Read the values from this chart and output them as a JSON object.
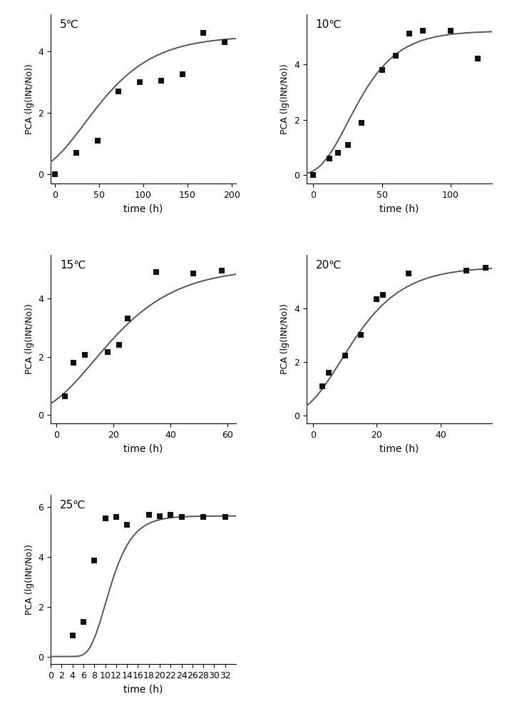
{
  "panels": [
    {
      "temp": "5℃",
      "scatter_x": [
        0,
        24,
        48,
        72,
        96,
        120,
        144,
        168,
        192
      ],
      "scatter_y": [
        0.0,
        0.7,
        1.1,
        2.7,
        3.0,
        3.05,
        3.25,
        4.6,
        4.3
      ],
      "xlim": [
        -5,
        205
      ],
      "ylim": [
        -0.3,
        5.2
      ],
      "xticks": [
        0,
        50,
        100,
        150,
        200
      ],
      "yticks": [
        0,
        2,
        4
      ],
      "gompertz": {
        "A": 4.5,
        "mu": 0.038,
        "lambda": -10
      },
      "curve_xmax": 205
    },
    {
      "temp": "10℃",
      "scatter_x": [
        0,
        12,
        18,
        25,
        35,
        50,
        60,
        70,
        80,
        100,
        120
      ],
      "scatter_y": [
        0.0,
        0.6,
        0.8,
        1.1,
        1.9,
        3.8,
        4.3,
        5.1,
        5.2,
        5.2,
        4.2
      ],
      "xlim": [
        -5,
        130
      ],
      "ylim": [
        -0.3,
        5.8
      ],
      "xticks": [
        0,
        50,
        100
      ],
      "yticks": [
        0,
        2,
        4
      ],
      "gompertz": {
        "A": 5.2,
        "mu": 0.095,
        "lambda": 5
      },
      "curve_xmax": 130
    },
    {
      "temp": "15℃",
      "scatter_x": [
        3,
        6,
        10,
        18,
        22,
        25,
        35,
        48,
        58
      ],
      "scatter_y": [
        0.65,
        1.8,
        2.05,
        2.15,
        2.4,
        3.3,
        4.9,
        4.85,
        4.95
      ],
      "xlim": [
        -2,
        63
      ],
      "ylim": [
        -0.3,
        5.5
      ],
      "xticks": [
        0,
        20,
        40,
        60
      ],
      "yticks": [
        0,
        2,
        4
      ],
      "gompertz": {
        "A": 5.05,
        "mu": 0.115,
        "lambda": -3
      },
      "curve_xmax": 63
    },
    {
      "temp": "20℃",
      "scatter_x": [
        3,
        5,
        10,
        15,
        20,
        22,
        30,
        48,
        54
      ],
      "scatter_y": [
        1.1,
        1.6,
        2.25,
        3.0,
        4.35,
        4.5,
        5.3,
        5.4,
        5.5
      ],
      "xlim": [
        -2,
        56
      ],
      "ylim": [
        -0.3,
        6.0
      ],
      "xticks": [
        0,
        20,
        40
      ],
      "yticks": [
        0,
        2,
        4
      ],
      "gompertz": {
        "A": 5.55,
        "mu": 0.19,
        "lambda": -2
      },
      "curve_xmax": 56
    },
    {
      "temp": "25℃",
      "scatter_x": [
        4,
        6,
        8,
        10,
        12,
        14,
        18,
        20,
        22,
        24,
        28,
        32
      ],
      "scatter_y": [
        0.85,
        1.4,
        3.85,
        5.55,
        5.6,
        5.3,
        5.7,
        5.65,
        5.7,
        5.6,
        5.6,
        5.6
      ],
      "xlim": [
        0,
        34
      ],
      "ylim": [
        -0.3,
        6.5
      ],
      "xticks": [
        0,
        2,
        4,
        6,
        8,
        10,
        12,
        14,
        16,
        18,
        20,
        22,
        24,
        26,
        28,
        30,
        32
      ],
      "yticks": [
        0,
        2,
        4,
        6
      ],
      "gompertz": {
        "A": 5.65,
        "mu": 0.75,
        "lambda": 7.2
      },
      "curve_xmax": 34
    }
  ],
  "ylabel": "PCA (lg(INt/No))",
  "xlabel": "time (h)",
  "line_color": "#555555",
  "marker_color": "#111111",
  "marker_size": 6,
  "line_width": 1.4
}
